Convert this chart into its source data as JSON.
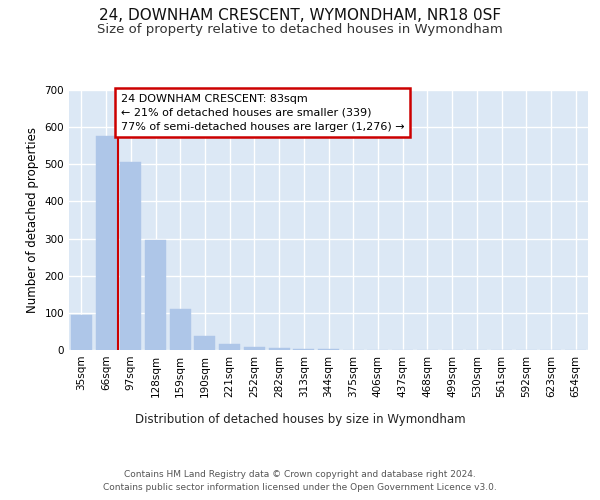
{
  "title": "24, DOWNHAM CRESCENT, WYMONDHAM, NR18 0SF",
  "subtitle": "Size of property relative to detached houses in Wymondham",
  "xlabel": "Distribution of detached houses by size in Wymondham",
  "ylabel": "Number of detached properties",
  "categories": [
    "35sqm",
    "66sqm",
    "97sqm",
    "128sqm",
    "159sqm",
    "190sqm",
    "221sqm",
    "252sqm",
    "282sqm",
    "313sqm",
    "344sqm",
    "375sqm",
    "406sqm",
    "437sqm",
    "468sqm",
    "499sqm",
    "530sqm",
    "561sqm",
    "592sqm",
    "623sqm",
    "654sqm"
  ],
  "values": [
    95,
    575,
    505,
    295,
    110,
    38,
    15,
    8,
    5,
    3,
    2,
    1,
    1,
    1,
    0,
    0,
    0,
    0,
    0,
    0,
    0
  ],
  "bar_color": "#aec6e8",
  "vline_color": "#cc0000",
  "vline_x": 1.5,
  "annotation_text": "24 DOWNHAM CRESCENT: 83sqm\n← 21% of detached houses are smaller (339)\n77% of semi-detached houses are larger (1,276) →",
  "annotation_box_color": "#ffffff",
  "annotation_box_edgecolor": "#cc0000",
  "ylim": [
    0,
    700
  ],
  "yticks": [
    0,
    100,
    200,
    300,
    400,
    500,
    600,
    700
  ],
  "footer": "Contains HM Land Registry data © Crown copyright and database right 2024.\nContains public sector information licensed under the Open Government Licence v3.0.",
  "background_color": "#ffffff",
  "plot_bg_color": "#dce8f5",
  "grid_color": "#ffffff",
  "title_fontsize": 11,
  "subtitle_fontsize": 9.5,
  "label_fontsize": 8.5,
  "tick_fontsize": 7.5,
  "footer_fontsize": 6.5,
  "annotation_fontsize": 8
}
